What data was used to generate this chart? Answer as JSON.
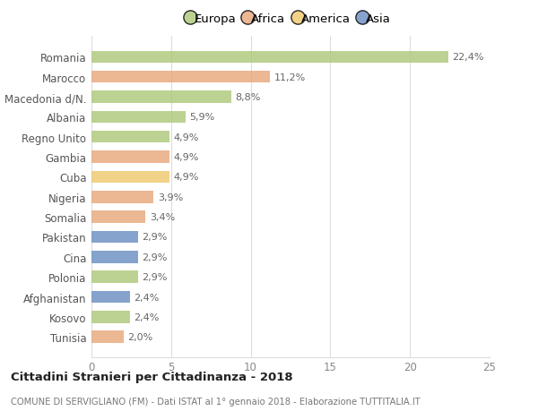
{
  "categories": [
    "Romania",
    "Marocco",
    "Macedonia d/N.",
    "Albania",
    "Regno Unito",
    "Gambia",
    "Cuba",
    "Nigeria",
    "Somalia",
    "Pakistan",
    "Cina",
    "Polonia",
    "Afghanistan",
    "Kosovo",
    "Tunisia"
  ],
  "values": [
    22.4,
    11.2,
    8.8,
    5.9,
    4.9,
    4.9,
    4.9,
    3.9,
    3.4,
    2.9,
    2.9,
    2.9,
    2.4,
    2.4,
    2.0
  ],
  "labels": [
    "22,4%",
    "11,2%",
    "8,8%",
    "5,9%",
    "4,9%",
    "4,9%",
    "4,9%",
    "3,9%",
    "3,4%",
    "2,9%",
    "2,9%",
    "2,9%",
    "2,4%",
    "2,4%",
    "2,0%"
  ],
  "colors": [
    "#adc97a",
    "#e8a87c",
    "#adc97a",
    "#adc97a",
    "#adc97a",
    "#e8a87c",
    "#f0c96e",
    "#e8a87c",
    "#e8a87c",
    "#6b8fc2",
    "#6b8fc2",
    "#adc97a",
    "#6b8fc2",
    "#adc97a",
    "#e8a87c"
  ],
  "legend_labels": [
    "Europa",
    "Africa",
    "America",
    "Asia"
  ],
  "legend_colors": [
    "#adc97a",
    "#e8a87c",
    "#f0c96e",
    "#6b8fc2"
  ],
  "xlim": [
    0,
    25
  ],
  "xticks": [
    0,
    5,
    10,
    15,
    20,
    25
  ],
  "title": "Cittadini Stranieri per Cittadinanza - 2018",
  "subtitle": "COMUNE DI SERVIGLIANO (FM) - Dati ISTAT al 1° gennaio 2018 - Elaborazione TUTTITALIA.IT",
  "bg_color": "#ffffff",
  "grid_color": "#dddddd",
  "bar_height": 0.6,
  "bar_alpha": 0.82
}
